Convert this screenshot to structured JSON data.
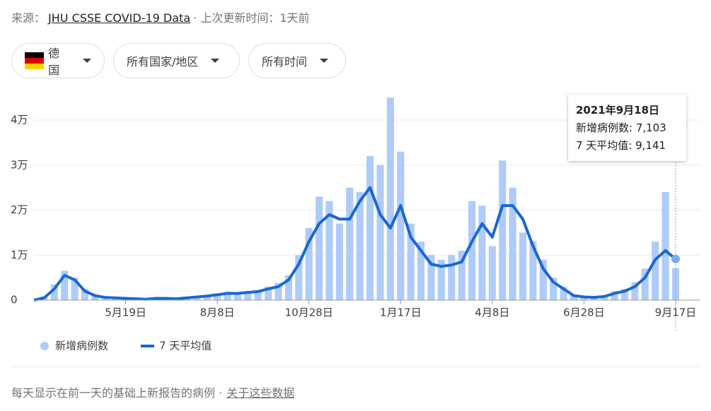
{
  "header": {
    "source_label": "来源：",
    "source_link": "JHU CSSE COVID-19 Data",
    "updated": "· 上次更新时间：1天前"
  },
  "filters": [
    "德国",
    "所有国家/地区",
    "所有时间"
  ],
  "chart_data": {
    "type": "bar_line",
    "categories": [
      null,
      null,
      null,
      null,
      null,
      null,
      null,
      null,
      null,
      "5月19日",
      null,
      null,
      null,
      null,
      null,
      null,
      null,
      null,
      "8月8日",
      null,
      null,
      null,
      null,
      null,
      null,
      null,
      null,
      "10月28日",
      null,
      null,
      null,
      null,
      null,
      null,
      null,
      null,
      "1月17日",
      null,
      null,
      null,
      null,
      null,
      null,
      null,
      null,
      "4月8日",
      null,
      null,
      null,
      null,
      null,
      null,
      null,
      null,
      "6月28日",
      null,
      null,
      null,
      null,
      null,
      null,
      null,
      null,
      "9月17日"
    ],
    "series": [
      {
        "name": "新增病例数",
        "color": "#aecbfa",
        "values": [
          0,
          800,
          3500,
          6500,
          5000,
          2500,
          1200,
          700,
          600,
          500,
          350,
          250,
          600,
          500,
          300,
          600,
          900,
          1100,
          1500,
          1900,
          1800,
          2000,
          2300,
          3000,
          3800,
          5500,
          10000,
          16000,
          23000,
          22000,
          17000,
          25000,
          24000,
          32000,
          30000,
          45000,
          33000,
          17000,
          13000,
          10000,
          9000,
          10000,
          11000,
          22000,
          21000,
          12000,
          31000,
          25000,
          15000,
          13000,
          9000,
          5000,
          3000,
          1200,
          900,
          700,
          1000,
          2000,
          2500,
          4000,
          7000,
          13000,
          24000,
          7103
        ]
      },
      {
        "name": "7 天平均值",
        "color": "#1967d2",
        "values": [
          0,
          500,
          2500,
          5500,
          4500,
          2000,
          1000,
          600,
          500,
          400,
          300,
          200,
          400,
          400,
          300,
          500,
          700,
          900,
          1200,
          1500,
          1500,
          1700,
          1900,
          2500,
          3000,
          4500,
          8000,
          13000,
          17000,
          19000,
          18000,
          18000,
          22000,
          25000,
          19000,
          16000,
          21000,
          14000,
          11000,
          8000,
          7500,
          7800,
          8500,
          13000,
          17000,
          14000,
          21000,
          21000,
          18000,
          12000,
          7000,
          4000,
          2500,
          1000,
          700,
          600,
          800,
          1500,
          2000,
          3000,
          5000,
          9000,
          11000,
          9141
        ]
      }
    ],
    "ylim": [
      0,
      40000
    ],
    "yticks": [
      0,
      {
        "value": 10000,
        "label": "1万"
      },
      {
        "value": 20000,
        "label": "2万"
      },
      {
        "value": 30000,
        "label": "3万"
      },
      {
        "value": 40000,
        "label": "4万"
      }
    ],
    "grid": true
  },
  "tooltip": {
    "date": "2021年9月18日",
    "lines": [
      "新增病例数: 7,103",
      "7 天平均值: 9,141"
    ]
  },
  "footer": {
    "note": "每天显示在前一天的基础上新报告的病例",
    "link": "关于这些数据"
  }
}
